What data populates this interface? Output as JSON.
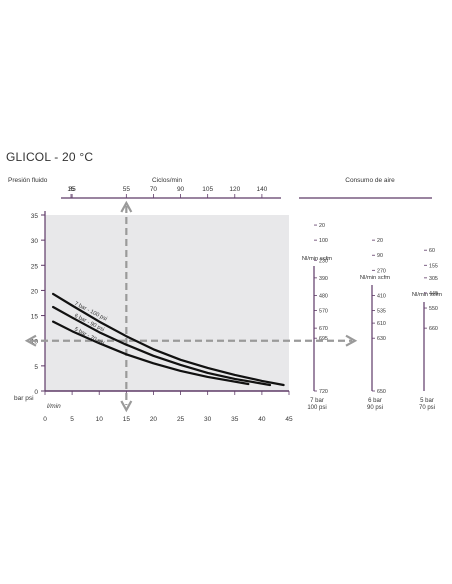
{
  "page_title": "GLICOL - 20 °C",
  "chart_data": {
    "type": "line",
    "labels": {
      "pressure_axis": "Presión fluido",
      "cycles_axis": "Ciclos/min",
      "air_consumption": "Consumo de aire",
      "pressure_units": "bar psi",
      "flow_unit": "l/min"
    },
    "x_axis": {
      "ticks": [
        0,
        5,
        10,
        15,
        20,
        25,
        30,
        35,
        40,
        45
      ],
      "range": [
        0,
        45
      ]
    },
    "y_axis_bar": {
      "ticks": [
        0,
        5,
        10,
        15,
        20,
        25,
        30,
        35
      ],
      "range": [
        0,
        35
      ]
    },
    "cycles_axis_ticks": [
      {
        "label": "15",
        "at": 0
      },
      {
        "label": "35",
        "at": 5
      },
      {
        "label": "55",
        "at": 15
      },
      {
        "label": "70",
        "at": 20
      },
      {
        "label": "90",
        "at": 25
      },
      {
        "label": "105",
        "at": 30
      },
      {
        "label": "120",
        "at": 35
      },
      {
        "label": "140",
        "at": 40
      }
    ],
    "series": [
      {
        "name": "7 bar - 100 psi",
        "x": [
          1.5,
          5,
          10,
          15,
          20,
          25,
          30,
          35,
          40,
          44
        ],
        "y": [
          19.3,
          17,
          13.8,
          10.9,
          8.3,
          6.2,
          4.6,
          3.2,
          2.0,
          1.2
        ]
      },
      {
        "name": "6 bar - 90 psi",
        "x": [
          1.5,
          5,
          10,
          15,
          20,
          25,
          30,
          35,
          41.5
        ],
        "y": [
          16.7,
          14.6,
          11.7,
          9.2,
          7.0,
          5.2,
          3.6,
          2.4,
          1.2
        ]
      },
      {
        "name": "5 bar - 70 psi",
        "x": [
          1.5,
          5,
          10,
          15,
          20,
          25,
          30,
          37.5
        ],
        "y": [
          13.8,
          11.9,
          9.5,
          7.3,
          5.5,
          4.0,
          2.8,
          1.4
        ]
      }
    ],
    "example_reading": {
      "x": 15,
      "y": 10
    },
    "air_scales": [
      {
        "header": "Nl/min scfm",
        "footer": [
          "7 bar",
          "100 psi"
        ],
        "values": [
          "20",
          "100",
          "230",
          "390",
          "480",
          "570",
          "670",
          "695",
          "720"
        ],
        "at": [
          33,
          30,
          26,
          22.5,
          19,
          16,
          12.5,
          10.5,
          0
        ]
      },
      {
        "header": "Nl/min scfm",
        "footer": [
          "6 bar",
          "90 psi"
        ],
        "values": [
          "20",
          "90",
          "270",
          "410",
          "535",
          "610",
          "630",
          "650"
        ],
        "at": [
          30,
          27,
          24,
          19,
          16,
          13.5,
          10.5,
          0
        ]
      },
      {
        "header": "Nl/min scfm",
        "footer": [
          "5 bar",
          "70 psi"
        ],
        "values": [
          "60",
          "155",
          "305",
          "440",
          "550",
          "660"
        ],
        "at": [
          28,
          25,
          22.5,
          19.5,
          16.5,
          12.5
        ]
      }
    ],
    "colors": {
      "plot_bg": "#e8e8ea",
      "axis": "#5e3a67",
      "curve": "#111111",
      "guide": "#9a9a9a"
    }
  }
}
